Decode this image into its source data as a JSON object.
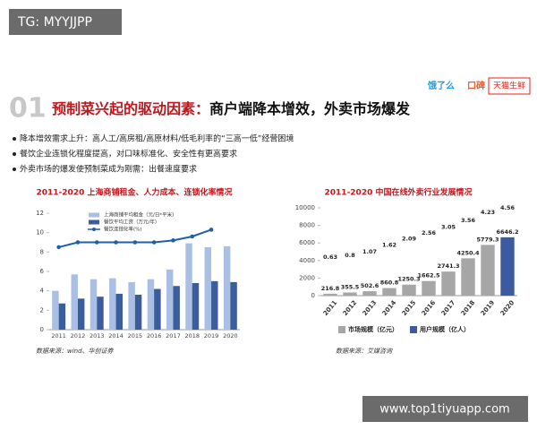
{
  "watermark": "TG: MYYJJPP",
  "footer_url": "www.top1tiyuapp.com",
  "logos": [
    "饿了么",
    "口碑",
    "天猫生鲜"
  ],
  "header": {
    "number": "01",
    "title_red": "预制菜兴起的驱动因素：",
    "title_black": "商户端降本增效，外卖市场爆发"
  },
  "bullets": [
    "降本增效需求上升：高人工/高房租/高原材料/低毛利率的“三高一低”经营困境",
    "餐饮企业连锁化程度提高，对口味标准化、安全性有更高要求",
    "外卖市场的爆发使预制菜成为刚需：出餐速度要求"
  ],
  "chart_data": [
    {
      "type": "bar",
      "title": "2011-2020 上海商铺租金、人力成本、连锁化率情况",
      "categories": [
        "2011",
        "2012",
        "2013",
        "2014",
        "2015",
        "2016",
        "2017",
        "2018",
        "2019",
        "2020"
      ],
      "series": [
        {
          "name": "上海商铺平均租金（元/日*平米）",
          "color": "#a9bfe3",
          "values": [
            4.0,
            5.7,
            5.2,
            5.3,
            4.9,
            5.2,
            6.2,
            8.9,
            8.5,
            8.6
          ]
        },
        {
          "name": "餐饮平均工资（万元/年）",
          "color": "#3b5d9c",
          "values": [
            2.7,
            3.2,
            3.4,
            3.7,
            3.6,
            4.2,
            4.5,
            4.8,
            5.0,
            4.9
          ]
        },
        {
          "name": "餐饮连锁化率(%)",
          "type": "line",
          "color": "#1f5fa8",
          "values": [
            8.5,
            9.0,
            9.0,
            9.0,
            9.0,
            9.0,
            9.2,
            9.6,
            10.3,
            null
          ]
        }
      ],
      "ylim": [
        0,
        12
      ],
      "yticks": [
        0,
        2,
        4,
        6,
        8,
        10,
        12
      ],
      "source": "数据来源：wind、华创证券"
    },
    {
      "type": "bar",
      "title": "2011-2020 中国在线外卖行业发展情况",
      "categories": [
        "2011",
        "2012",
        "2013",
        "2014",
        "2015",
        "2016",
        "2017",
        "2018",
        "2019",
        "2020"
      ],
      "series": [
        {
          "name": "市场规模（亿元）",
          "color": "#a6a6a6",
          "colors": [
            "#a6a6a6",
            "#a6a6a6",
            "#a6a6a6",
            "#a6a6a6",
            "#a6a6a6",
            "#a6a6a6",
            "#a6a6a6",
            "#a6a6a6",
            "#a6a6a6",
            "#3b5aa0"
          ],
          "values": [
            216.8,
            355.5,
            502.6,
            860.8,
            1250.3,
            1662.5,
            2741.3,
            4250.4,
            5779.3,
            6646.2
          ]
        },
        {
          "name": "用户规模（亿人）",
          "type": "label",
          "color": "#3b5aa0",
          "values": [
            0.63,
            0.8,
            1.07,
            1.62,
            2.09,
            2.56,
            3.05,
            3.56,
            4.23,
            4.56
          ]
        }
      ],
      "ylim": [
        0,
        10000
      ],
      "yticks": [
        0,
        2000,
        4000,
        6000,
        8000,
        10000
      ],
      "source": "数据来源：艾媒咨询"
    }
  ]
}
